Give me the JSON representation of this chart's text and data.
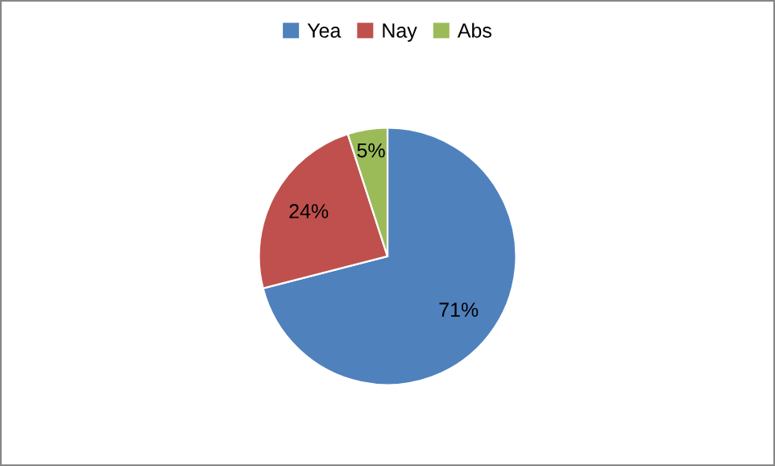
{
  "chart_data": {
    "type": "pie",
    "categories": [
      "Yea",
      "Nay",
      "Abs"
    ],
    "values": [
      71,
      24,
      5
    ],
    "colors": [
      "#4f81bd",
      "#c0504d",
      "#9bbb59"
    ],
    "value_labels": [
      "71%",
      "24%",
      "5%"
    ],
    "legend": "top"
  }
}
